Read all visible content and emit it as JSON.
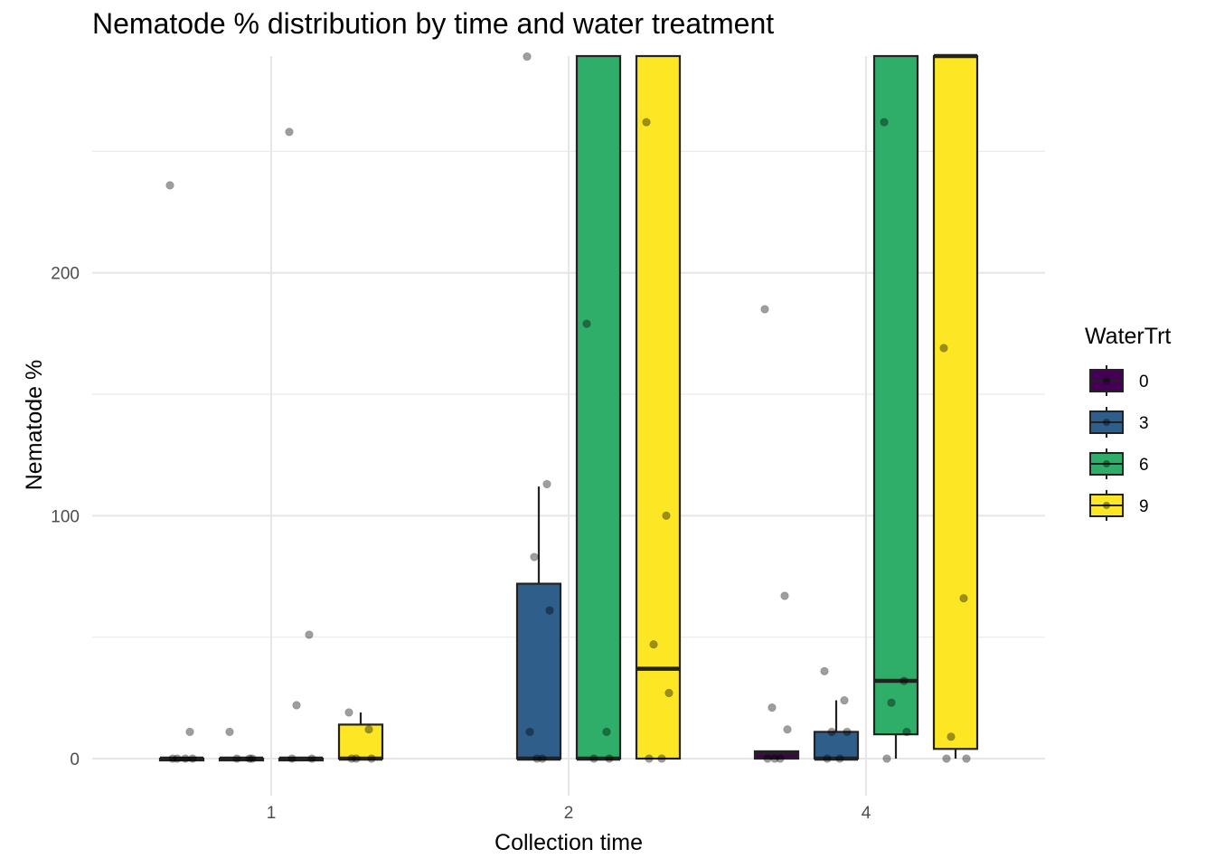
{
  "chart_data": {
    "type": "boxplot",
    "title": "Nematode % distribution by time and water treatment",
    "xlabel": "Collection time",
    "ylabel": "Nematode %",
    "categories": [
      "1",
      "2",
      "4"
    ],
    "y_ticks": [
      "0",
      "100",
      "200"
    ],
    "ylim": [
      -11,
      290
    ],
    "grid": true,
    "legend": {
      "title": "WaterTrt",
      "position": "right"
    },
    "series": [
      {
        "name": "0",
        "color": "#440154",
        "boxes": [
          {
            "x": "1",
            "q1": 0,
            "median": 0,
            "q3": 0,
            "whisker_low": 0,
            "whisker_high": 0
          },
          null,
          {
            "x": "4",
            "q1": 0,
            "median": 2.5,
            "q3": 3,
            "whisker_low": 0,
            "whisker_high": 3
          }
        ],
        "points": [
          {
            "x": "1",
            "y": [
              236,
              11,
              0,
              0,
              0,
              0
            ]
          },
          null,
          {
            "x": "4",
            "y": [
              185,
              67,
              21,
              12,
              0,
              0,
              0
            ]
          }
        ]
      },
      {
        "name": "3",
        "color": "#2F5E8A",
        "boxes": [
          {
            "x": "1",
            "q1": 0,
            "median": 0,
            "q3": 0,
            "whisker_low": 0,
            "whisker_high": 0
          },
          {
            "x": "2",
            "q1": 0,
            "median": 0,
            "q3": 72,
            "whisker_low": 0,
            "whisker_high": 112
          },
          {
            "x": "4",
            "q1": 0,
            "median": 0,
            "q3": 11,
            "whisker_low": 0,
            "whisker_high": 24
          }
        ],
        "points": [
          {
            "x": "1",
            "y": [
              11,
              0,
              0,
              0
            ]
          },
          {
            "x": "2",
            "y": [
              289,
              113,
              83,
              61,
              11,
              0,
              0
            ]
          },
          {
            "x": "4",
            "y": [
              36,
              24,
              11,
              11,
              0,
              0
            ]
          }
        ]
      },
      {
        "name": "6",
        "color": "#2FAE69",
        "boxes": [
          {
            "x": "1",
            "q1": 0,
            "median": 0,
            "q3": 0,
            "whisker_low": 0,
            "whisker_high": 0
          },
          {
            "x": "2",
            "q1": 0,
            "median": 0,
            "q3": 290,
            "whisker_low": 0,
            "whisker_high": 290
          },
          {
            "x": "4",
            "q1": 10,
            "median": 32,
            "q3": 290,
            "whisker_low": 0,
            "whisker_high": 290
          }
        ],
        "points": [
          {
            "x": "1",
            "y": [
              258,
              51,
              22,
              0,
              0
            ]
          },
          {
            "x": "2",
            "y": [
              179,
              11,
              0,
              0
            ]
          },
          {
            "x": "4",
            "y": [
              262,
              32,
              23,
              11,
              0
            ]
          }
        ]
      },
      {
        "name": "9",
        "color": "#FDE725",
        "boxes": [
          {
            "x": "1",
            "q1": 0,
            "median": 0,
            "q3": 14,
            "whisker_low": 0,
            "whisker_high": 19
          },
          {
            "x": "2",
            "q1": 0,
            "median": 37,
            "q3": 290,
            "whisker_low": 0,
            "whisker_high": 290
          },
          {
            "x": "4",
            "q1": 4,
            "median": 290,
            "q3": 290,
            "whisker_low": 0,
            "whisker_high": 290
          }
        ],
        "points": [
          {
            "x": "1",
            "y": [
              19,
              12,
              0,
              0,
              0
            ]
          },
          {
            "x": "2",
            "y": [
              262,
              100,
              47,
              27,
              0,
              0
            ]
          },
          {
            "x": "4",
            "y": [
              169,
              66,
              9,
              0,
              0
            ]
          }
        ]
      }
    ]
  }
}
